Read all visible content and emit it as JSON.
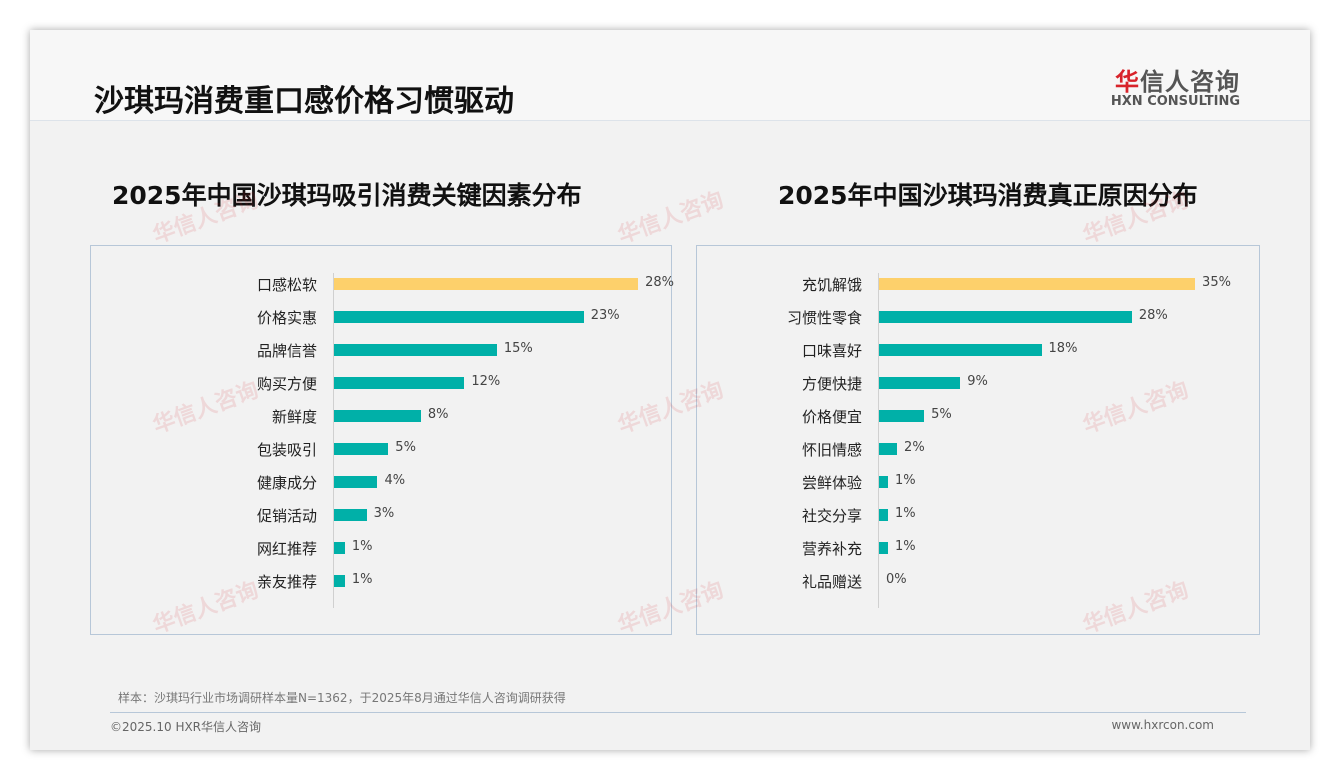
{
  "header": {
    "title": "沙琪玛消费重口感价格习惯驱动",
    "logo_cn_red": "华",
    "logo_cn": "信人咨询",
    "logo_en": "HXN CONSULTING"
  },
  "chart_data": [
    {
      "type": "bar",
      "orientation": "horizontal",
      "title": "2025年中国沙琪玛吸引消费关键因素分布",
      "categories": [
        "口感松软",
        "价格实惠",
        "品牌信誉",
        "购买方便",
        "新鲜度",
        "包装吸引",
        "健康成分",
        "促销活动",
        "网红推荐",
        "亲友推荐"
      ],
      "values": [
        28,
        23,
        15,
        12,
        8,
        5,
        4,
        3,
        1,
        1
      ],
      "unit": "%",
      "highlight_color": "#fdd06b",
      "bar_color": "#00b0a8"
    },
    {
      "type": "bar",
      "orientation": "horizontal",
      "title": "2025年中国沙琪玛消费真正原因分布",
      "categories": [
        "充饥解饿",
        "习惯性零食",
        "口味喜好",
        "方便快捷",
        "价格便宜",
        "怀旧情感",
        "尝鲜体验",
        "社交分享",
        "营养补充",
        "礼品赠送"
      ],
      "values": [
        35,
        28,
        18,
        9,
        5,
        2,
        1,
        1,
        1,
        0
      ],
      "unit": "%",
      "highlight_color": "#fdd06b",
      "bar_color": "#00b0a8"
    }
  ],
  "footer": {
    "note": "样本：沙琪玛行业市场调研样本量N=1362，于2025年8月通过华信人咨询调研获得",
    "copyright": "©2025.10 HXR华信人咨询",
    "url": "www.hxrcon.com"
  }
}
